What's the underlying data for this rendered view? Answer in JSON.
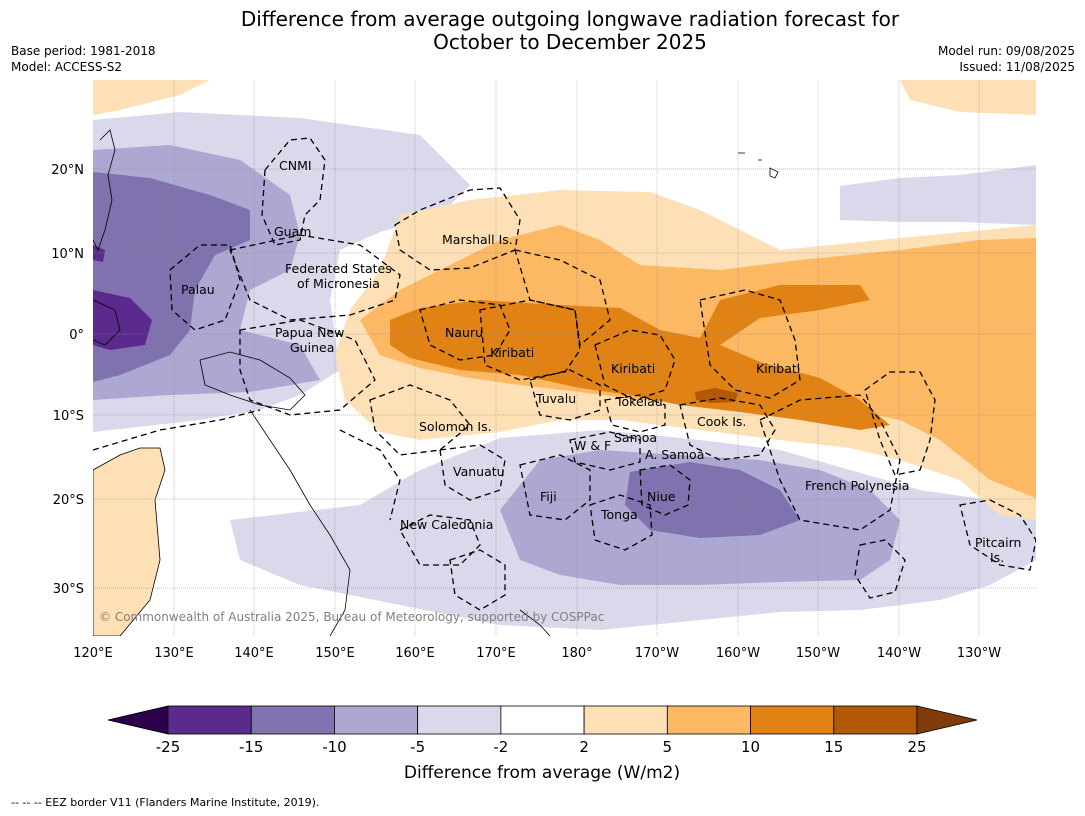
{
  "header": {
    "title_line1": "Difference from average outgoing longwave radiation forecast for",
    "title_line2": "October to December 2025",
    "base_period": "Base period: 1981-2018",
    "model": "Model: ACCESS-S2",
    "model_run": "Model run: 09/08/2025",
    "issued": "Issued: 11/08/2025"
  },
  "map": {
    "lon_labels": [
      "120°E",
      "130°E",
      "140°E",
      "150°E",
      "160°E",
      "170°E",
      "180°",
      "170°W",
      "160°W",
      "150°W",
      "140°W",
      "130°W"
    ],
    "lat_labels": [
      "20°N",
      "10°N",
      "0°",
      "10°S",
      "20°S",
      "30°S"
    ],
    "places": {
      "cnmi": "CNMI",
      "guam": "Guam",
      "marshall": "Marshall Is.",
      "fsm1": "Federated States",
      "fsm2": "of Micronesia",
      "palau": "Palau",
      "png1": "Papua New",
      "png2": "Guinea",
      "nauru": "Nauru",
      "kiribati_w": "Kiribati",
      "kiribati_c": "Kiribati",
      "kiribati_e": "Kiribati",
      "tuvalu": "Tuvalu",
      "tokelau": "Tokelau",
      "cook": "Cook Is.",
      "solomon": "Solomon Is.",
      "wf": "W & F",
      "samoa": "Samoa",
      "asamoa": "A. Samoa",
      "vanuatu": "Vanuatu",
      "fiji": "Fiji",
      "niue": "Niue",
      "tonga": "Tonga",
      "newcal": "New Caledonia",
      "frpoly": "French Polynesia",
      "pitcairn1": "Pitcairn",
      "pitcairn2": "Is."
    },
    "copyright": "© Commonwealth of Australia 2025, Bureau of Meteorology, supported by COSPPac"
  },
  "colorbar": {
    "ticks": [
      "-25",
      "-15",
      "-10",
      "-5",
      "-2",
      "2",
      "5",
      "10",
      "15",
      "25"
    ],
    "colors": [
      "#5a2a8c",
      "#7f72ae",
      "#ada8d2",
      "#d9d9eb",
      "#ffffff",
      "#fee0b6",
      "#fdb863",
      "#e08214",
      "#b35806"
    ],
    "under_color": "#2d004b",
    "over_color": "#7f3b08",
    "label": "Difference from average (W/m2)"
  },
  "footnote": "--  --  -- EEZ border V11 (Flanders Marine Institute, 2019)."
}
